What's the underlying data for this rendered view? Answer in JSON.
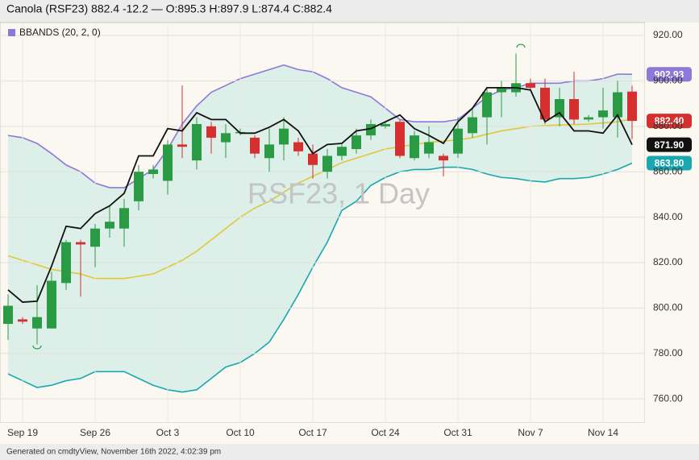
{
  "chart_data": {
    "type": "candlestick",
    "title": "Canola (RSF23) 882.4 -12.2 — O:895.3 H:897.9 L:874.4 C:882.4",
    "watermark": "RSF23, 1 Day",
    "footer": "Generated on cmdtyView, November 16th 2022, 4:02:39 pm",
    "categories": [
      null,
      "Sep 19",
      null,
      null,
      null,
      null,
      "Sep 26",
      null,
      null,
      null,
      null,
      "Oct 3",
      null,
      null,
      null,
      null,
      "Oct 10",
      null,
      null,
      null,
      null,
      "Oct 17",
      null,
      null,
      null,
      null,
      "Oct 24",
      null,
      null,
      null,
      null,
      "Oct 31",
      null,
      null,
      null,
      null,
      "Nov 7",
      null,
      null,
      null,
      null,
      "Nov 14",
      null,
      null
    ],
    "open": [
      793,
      795,
      791,
      791,
      811,
      829,
      827,
      835,
      835,
      847,
      859,
      856,
      872,
      865,
      880,
      873,
      877,
      875,
      866,
      872,
      873,
      868,
      860,
      867,
      870,
      876,
      880,
      882,
      866,
      868,
      867,
      868,
      877,
      884,
      895,
      895,
      899,
      897,
      884,
      892,
      883,
      884,
      884,
      895.3
    ],
    "high": [
      806,
      796,
      810,
      816,
      830,
      830,
      837,
      845,
      848,
      863,
      863,
      874,
      898,
      884,
      882,
      881,
      879,
      876,
      879,
      884,
      875,
      872,
      870,
      872,
      879,
      883,
      882,
      883,
      878,
      880,
      868,
      884,
      888,
      897,
      900,
      912,
      901,
      901,
      897,
      904,
      885,
      897,
      900,
      897.9
    ],
    "low": [
      786,
      793,
      784,
      791,
      808,
      805,
      818,
      831,
      827,
      843,
      857,
      850,
      866,
      861,
      868,
      866,
      876,
      866,
      860,
      865,
      867,
      857,
      857,
      865,
      868,
      874,
      879,
      866,
      865,
      866,
      858,
      866,
      875,
      872,
      884,
      893,
      896,
      881,
      880,
      881,
      882,
      879,
      875,
      874.4
    ],
    "close": [
      801,
      794,
      796,
      812,
      829,
      828,
      835,
      838,
      844,
      860,
      861,
      872,
      871,
      881,
      875,
      877,
      877.5,
      868,
      872,
      879,
      869,
      863,
      867,
      871,
      876,
      881,
      881,
      867,
      876,
      873,
      865,
      879,
      884,
      895,
      897,
      899,
      897,
      883,
      892,
      883,
      884,
      887,
      895,
      882.4
    ],
    "close_label": "882.40",
    "up_color": "#2b9a44",
    "down_color": "#d62f2f",
    "bbands": {
      "label": "BBANDS (20, 2, 0)",
      "legend_color": "#8c79d8",
      "fill": "#dcefe8",
      "upper": {
        "color": "#8c79d8",
        "label": "902.93",
        "values": [
          876,
          875,
          872.5,
          868,
          863,
          860,
          855,
          853,
          853,
          857,
          861,
          870,
          881,
          889,
          895,
          898,
          901,
          903,
          905,
          907,
          905,
          904,
          901,
          897,
          895,
          893,
          888,
          883,
          882,
          882,
          882,
          883,
          888,
          893,
          896,
          897,
          899,
          899,
          899,
          900,
          900,
          901,
          903,
          902.93
        ]
      },
      "middle": {
        "color": "#e1c83a",
        "values": [
          823,
          821,
          819,
          817,
          816,
          815,
          813,
          813,
          813,
          814,
          815,
          818,
          821,
          825,
          830,
          835,
          840,
          844,
          847,
          851,
          855,
          858,
          861,
          864,
          866,
          868,
          870,
          871,
          872,
          873,
          873.5,
          874,
          875,
          876.5,
          878,
          879,
          880,
          880.3,
          880.6,
          880.8,
          881,
          881.5,
          882,
          883.37
        ]
      },
      "lower": {
        "color": "#1aa7b0",
        "label": "863.80",
        "values": [
          771,
          768,
          765,
          766,
          768,
          769,
          772,
          772,
          772,
          769,
          766,
          764,
          763,
          764,
          769,
          774,
          776,
          780,
          785,
          795,
          806,
          818,
          829,
          843,
          847,
          854,
          857.5,
          860,
          861,
          861,
          862,
          862,
          861,
          859,
          857.5,
          857,
          856,
          855.5,
          857,
          857,
          857.5,
          859,
          861,
          863.8
        ]
      }
    },
    "line": {
      "color": "#111111",
      "label": "871.90",
      "values": [
        808,
        802.6,
        803,
        818.5,
        836,
        835,
        841.6,
        845,
        850.5,
        867,
        867,
        879,
        878,
        886,
        883,
        883,
        877,
        877,
        879.6,
        883,
        878,
        868,
        872,
        872.5,
        878,
        879,
        882,
        885,
        879,
        876,
        872.5,
        882,
        888,
        897,
        897,
        897,
        896,
        882,
        886,
        878,
        878,
        877,
        885,
        871.9
      ]
    },
    "ylim": [
      749.4,
      925.7
    ],
    "yticks": [
      {
        "value": 760,
        "label": "760.00"
      },
      {
        "value": 780,
        "label": "780.00"
      },
      {
        "value": 800,
        "label": "800.00"
      },
      {
        "value": 820,
        "label": "820.00"
      },
      {
        "value": 840,
        "label": "840.00"
      },
      {
        "value": 860,
        "label": "860.00"
      },
      {
        "value": 880,
        "label": "880.00"
      },
      {
        "value": 900,
        "label": "900.00"
      },
      {
        "value": 920,
        "label": "920.00"
      }
    ],
    "grid": true
  }
}
